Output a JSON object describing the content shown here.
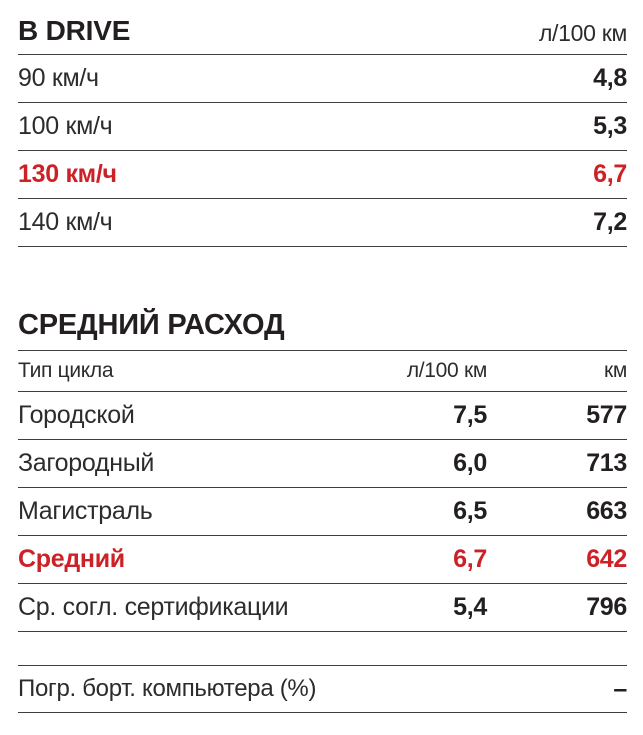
{
  "colors": {
    "accent_red": "#cc2127",
    "text_black": "#231f20",
    "label_gray": "#2d2c2b",
    "rule_gray": "#3e3e3c"
  },
  "drive_table": {
    "title": "В DRIVE",
    "unit_header": "л/100 км",
    "rows": [
      {
        "label": "90 км/ч",
        "value": "4,8",
        "highlight": false
      },
      {
        "label": "100 км/ч",
        "value": "5,3",
        "highlight": false
      },
      {
        "label": "130 км/ч",
        "value": "6,7",
        "highlight": true
      },
      {
        "label": "140 км/ч",
        "value": "7,2",
        "highlight": false
      }
    ]
  },
  "average_table": {
    "title": "СРЕДНИЙ РАСХОД",
    "columns": [
      "Тип цикла",
      "л/100 км",
      "км"
    ],
    "rows": [
      {
        "label": "Городской",
        "consumption": "7,5",
        "range": "577",
        "highlight": false
      },
      {
        "label": "Загородный",
        "consumption": "6,0",
        "range": "713",
        "highlight": false
      },
      {
        "label": "Магистраль",
        "consumption": "6,5",
        "range": "663",
        "highlight": false
      },
      {
        "label": "Средний",
        "consumption": "6,7",
        "range": "642",
        "highlight": true
      },
      {
        "label": "Ср. согл. сертификации",
        "consumption": "5,4",
        "range": "796",
        "highlight": false
      }
    ]
  },
  "footer": {
    "label": "Погр. борт. компьютера (%)",
    "value": "–"
  }
}
